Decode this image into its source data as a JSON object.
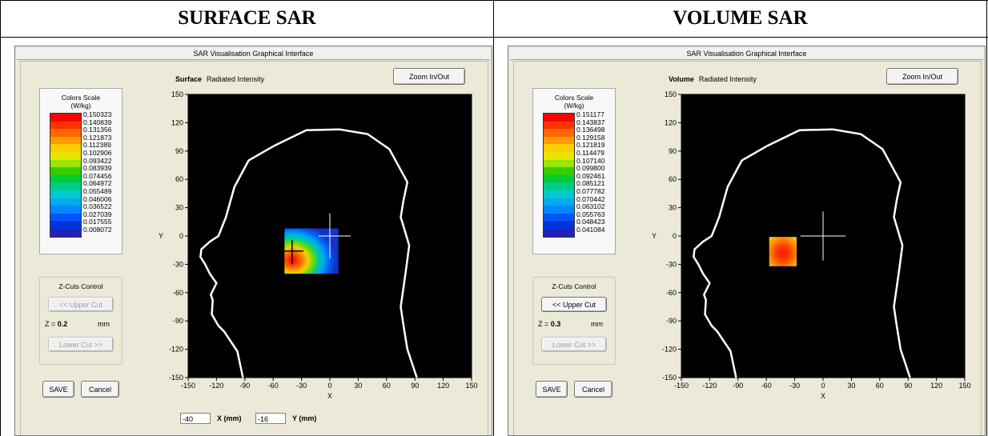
{
  "headers": {
    "left": "SURFACE SAR",
    "right": "VOLUME SAR"
  },
  "panels": [
    {
      "window_title": "SAR Visualisation Graphical Interface",
      "mode": "Surface",
      "subtitle": "Radiated Intensity",
      "zoom_button": "Zoom In/Out",
      "scale_title_1": "Colors Scale",
      "scale_title_2": "(W/kg)",
      "scale_values": [
        "0.150323",
        "0.140839",
        "0.131356",
        "0.121873",
        "0.112389",
        "0.102906",
        "0.093422",
        "0.083939",
        "0.074456",
        "0.064972",
        "0.055489",
        "0.046006",
        "0.036522",
        "0.027039",
        "0.017555",
        "0.008072"
      ],
      "zcuts_title": "Z-Cuts Control",
      "upper_cut": "<< Upper Cut",
      "upper_enabled": false,
      "z_label": "Z =",
      "z_value": "0.2",
      "z_unit": "mm",
      "lower_cut": "Lower Cut >>",
      "save": "SAVE",
      "cancel": "Cancel",
      "x_ticks": [
        "-150",
        "-120",
        "-90",
        "-60",
        "-30",
        "0",
        "30",
        "60",
        "90",
        "120",
        "150"
      ],
      "y_ticks": [
        "150",
        "120",
        "90",
        "60",
        "30",
        "0",
        "-30",
        "-60",
        "-90",
        "-120",
        "-150"
      ],
      "x_axis_label": "X",
      "y_axis_label": "Y",
      "coord_x_value": "-40",
      "coord_x_label": "X (mm)",
      "coord_y_value": "-16",
      "coord_y_label": "Y (mm)"
    },
    {
      "window_title": "SAR Visualisation Graphical Interface",
      "mode": "Volume",
      "subtitle": "Radiated Intensity",
      "zoom_button": "Zoom In/Out",
      "scale_title_1": "Colors Scale",
      "scale_title_2": "(W/kg)",
      "scale_values": [
        "0.151177",
        "0.143837",
        "0.136498",
        "0.129158",
        "0.121819",
        "0.114479",
        "0.107140",
        "0.099800",
        "0.092461",
        "0.085121",
        "0.077782",
        "0.070442",
        "0.063102",
        "0.055763",
        "0.048423",
        "0.041084"
      ],
      "zcuts_title": "Z-Cuts Control",
      "upper_cut": "<< Upper Cut",
      "upper_enabled": true,
      "z_label": "Z =",
      "z_value": "0.3",
      "z_unit": "mm",
      "lower_cut": "Lower Cut >>",
      "save": "SAVE",
      "cancel": "Cancel",
      "x_ticks": [
        "-150",
        "-120",
        "-90",
        "-60",
        "-30",
        "0",
        "30",
        "60",
        "90",
        "120",
        "150"
      ],
      "y_ticks": [
        "150",
        "120",
        "90",
        "60",
        "30",
        "0",
        "-30",
        "-60",
        "-90",
        "-120",
        "-150"
      ],
      "x_axis_label": "X",
      "y_axis_label": "Y"
    }
  ],
  "colors": {
    "scale": [
      "#ff0000",
      "#ff3300",
      "#ff6600",
      "#ff9900",
      "#ffcc00",
      "#e6e600",
      "#99e600",
      "#33cc00",
      "#00cc33",
      "#00cc88",
      "#00cccc",
      "#00aaee",
      "#0088ff",
      "#0055ff",
      "#0033dd",
      "#2222bb"
    ],
    "plot_bg": "#000000",
    "head_outline": "#ffffff"
  }
}
